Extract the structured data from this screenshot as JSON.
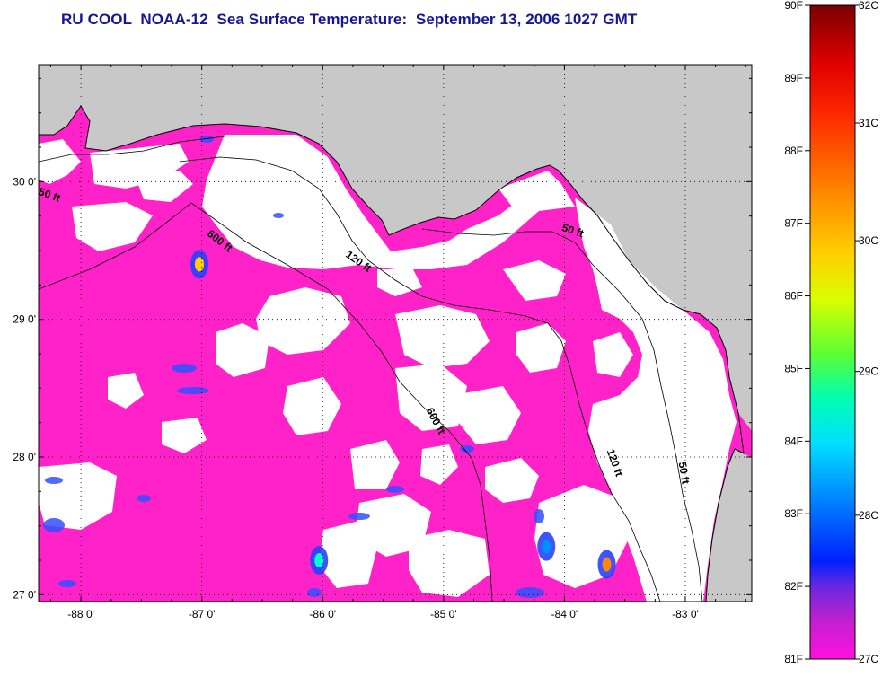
{
  "title": "RU COOL  NOAA-12  Sea Surface Temperature:  September 13, 2006 1027 GMT",
  "map": {
    "lon_range": [
      -88.35,
      -82.45
    ],
    "lat_range": [
      26.95,
      30.85
    ],
    "lon_ticks": [
      {
        "value": -88,
        "label": "-88 0'"
      },
      {
        "value": -87,
        "label": "-87 0'"
      },
      {
        "value": -86,
        "label": "-86 0'"
      },
      {
        "value": -85,
        "label": "-85 0'"
      },
      {
        "value": -84,
        "label": "-84 0'"
      },
      {
        "value": -83,
        "label": "-83 0'"
      }
    ],
    "lat_ticks": [
      {
        "value": 30,
        "label": "30 0'"
      },
      {
        "value": 29,
        "label": "29 0'"
      },
      {
        "value": 28,
        "label": "28 0'"
      },
      {
        "value": 27,
        "label": "27 0'"
      }
    ],
    "colors": {
      "land": "#c8c8c8",
      "cloud": "#ffffff",
      "sst_27c": "#ff22c8",
      "coast": "#000000"
    },
    "contour_labels": [
      {
        "text": "50 ft",
        "lon": -88.27,
        "lat": 29.88,
        "angle": 20
      },
      {
        "text": "600 ft",
        "lon": -86.87,
        "lat": 29.55,
        "angle": 38
      },
      {
        "text": "120 ft",
        "lon": -85.72,
        "lat": 29.4,
        "angle": 35
      },
      {
        "text": "50 ft",
        "lon": -83.94,
        "lat": 29.62,
        "angle": 18
      },
      {
        "text": "600 ft",
        "lon": -85.09,
        "lat": 28.25,
        "angle": 62
      },
      {
        "text": "120 ft",
        "lon": -83.61,
        "lat": 27.95,
        "angle": 70
      },
      {
        "text": "50 ft",
        "lon": -83.04,
        "lat": 27.88,
        "angle": 80
      }
    ],
    "warm_spots": [
      {
        "lon": -87.02,
        "lat": 29.4,
        "level": 30.2
      },
      {
        "lon": -86.03,
        "lat": 27.25,
        "level": 29.2
      },
      {
        "lon": -83.65,
        "lat": 27.22,
        "level": 30.5
      },
      {
        "lon": -84.15,
        "lat": 27.35,
        "level": 28.6
      }
    ]
  },
  "colorbar": {
    "f_ticks": [
      "90F",
      "89F",
      "88F",
      "87F",
      "86F",
      "85F",
      "84F",
      "83F",
      "82F",
      "81F"
    ],
    "c_ticks": [
      "32C",
      "31C",
      "30C",
      "29C",
      "28C",
      "27C"
    ],
    "gradient_colors": [
      "#7a0000",
      "#e00000",
      "#ff2a00",
      "#ff7a00",
      "#ffd000",
      "#d8ff00",
      "#60ff30",
      "#00ffb0",
      "#00e0ff",
      "#0080ff",
      "#0020ff",
      "#6a28e0",
      "#c020d0",
      "#ff10e0"
    ]
  }
}
